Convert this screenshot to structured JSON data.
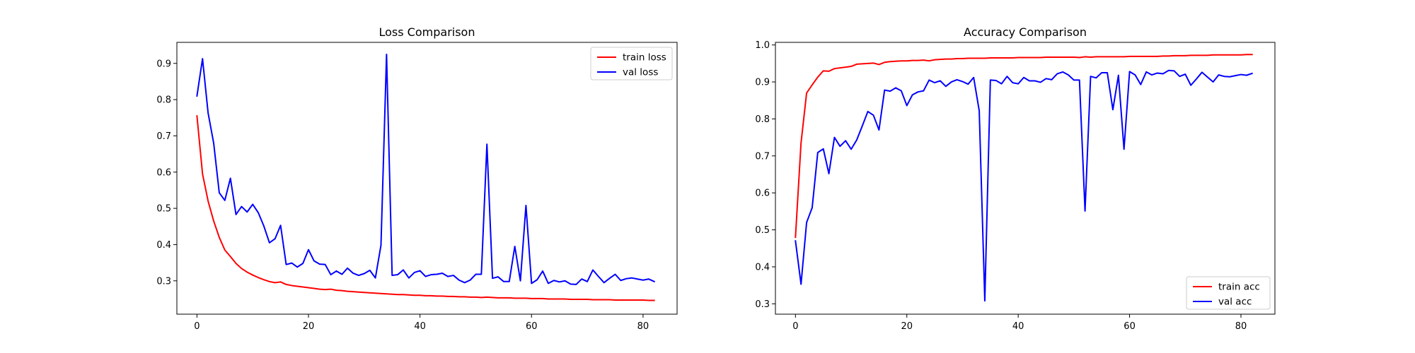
{
  "chart_data": [
    {
      "type": "line",
      "title": "Loss Comparison",
      "xlabel": "",
      "ylabel": "",
      "xlim": [
        -3.6,
        86.1
      ],
      "ylim": [
        0.208,
        0.958
      ],
      "xticks": [
        0,
        20,
        40,
        60,
        80
      ],
      "yticks": [
        0.3,
        0.4,
        0.5,
        0.6,
        0.7,
        0.8,
        0.9
      ],
      "grid": false,
      "legend_position": "top-right",
      "x": [
        0,
        1,
        2,
        3,
        4,
        5,
        6,
        7,
        8,
        9,
        10,
        11,
        12,
        13,
        14,
        15,
        16,
        17,
        18,
        19,
        20,
        21,
        22,
        23,
        24,
        25,
        26,
        27,
        28,
        29,
        30,
        31,
        32,
        33,
        34,
        35,
        36,
        37,
        38,
        39,
        40,
        41,
        42,
        43,
        44,
        45,
        46,
        47,
        48,
        49,
        50,
        51,
        52,
        53,
        54,
        55,
        56,
        57,
        58,
        59,
        60,
        61,
        62,
        63,
        64,
        65,
        66,
        67,
        68,
        69,
        70,
        71,
        72,
        73,
        74,
        75,
        76,
        77,
        78,
        79,
        80,
        81,
        82
      ],
      "series": [
        {
          "name": "train loss",
          "color": "#ff0000",
          "values": [
            0.755,
            0.595,
            0.52,
            0.465,
            0.42,
            0.385,
            0.367,
            0.348,
            0.334,
            0.324,
            0.316,
            0.309,
            0.303,
            0.298,
            0.295,
            0.297,
            0.29,
            0.287,
            0.285,
            0.283,
            0.281,
            0.279,
            0.277,
            0.276,
            0.277,
            0.274,
            0.273,
            0.271,
            0.27,
            0.269,
            0.268,
            0.267,
            0.266,
            0.265,
            0.264,
            0.263,
            0.262,
            0.262,
            0.261,
            0.26,
            0.26,
            0.259,
            0.259,
            0.258,
            0.258,
            0.257,
            0.257,
            0.256,
            0.256,
            0.255,
            0.255,
            0.254,
            0.255,
            0.254,
            0.253,
            0.253,
            0.253,
            0.252,
            0.252,
            0.252,
            0.251,
            0.251,
            0.251,
            0.25,
            0.25,
            0.25,
            0.25,
            0.249,
            0.249,
            0.249,
            0.249,
            0.248,
            0.248,
            0.248,
            0.248,
            0.247,
            0.247,
            0.247,
            0.247,
            0.247,
            0.247,
            0.246,
            0.246
          ]
        },
        {
          "name": "val loss",
          "color": "#0000ff",
          "values": [
            0.81,
            0.913,
            0.763,
            0.68,
            0.543,
            0.522,
            0.583,
            0.483,
            0.505,
            0.49,
            0.511,
            0.488,
            0.451,
            0.405,
            0.416,
            0.453,
            0.345,
            0.349,
            0.338,
            0.348,
            0.386,
            0.355,
            0.346,
            0.345,
            0.317,
            0.327,
            0.318,
            0.335,
            0.321,
            0.315,
            0.32,
            0.329,
            0.308,
            0.398,
            0.925,
            0.315,
            0.317,
            0.33,
            0.308,
            0.323,
            0.328,
            0.312,
            0.317,
            0.318,
            0.321,
            0.312,
            0.315,
            0.302,
            0.295,
            0.302,
            0.318,
            0.318,
            0.677,
            0.307,
            0.311,
            0.298,
            0.298,
            0.395,
            0.3,
            0.508,
            0.293,
            0.303,
            0.327,
            0.293,
            0.301,
            0.297,
            0.3,
            0.291,
            0.29,
            0.305,
            0.298,
            0.33,
            0.312,
            0.295,
            0.307,
            0.318,
            0.301,
            0.306,
            0.308,
            0.305,
            0.302,
            0.305,
            0.298
          ]
        }
      ]
    },
    {
      "type": "line",
      "title": "Accuracy Comparison",
      "xlabel": "",
      "ylabel": "",
      "xlim": [
        -3.6,
        86.1
      ],
      "ylim": [
        0.272,
        1.007
      ],
      "xticks": [
        0,
        20,
        40,
        60,
        80
      ],
      "yticks": [
        0.3,
        0.4,
        0.5,
        0.6,
        0.7,
        0.8,
        0.9,
        1.0
      ],
      "grid": false,
      "legend_position": "bottom-right",
      "x": [
        0,
        1,
        2,
        3,
        4,
        5,
        6,
        7,
        8,
        9,
        10,
        11,
        12,
        13,
        14,
        15,
        16,
        17,
        18,
        19,
        20,
        21,
        22,
        23,
        24,
        25,
        26,
        27,
        28,
        29,
        30,
        31,
        32,
        33,
        34,
        35,
        36,
        37,
        38,
        39,
        40,
        41,
        42,
        43,
        44,
        45,
        46,
        47,
        48,
        49,
        50,
        51,
        52,
        53,
        54,
        55,
        56,
        57,
        58,
        59,
        60,
        61,
        62,
        63,
        64,
        65,
        66,
        67,
        68,
        69,
        70,
        71,
        72,
        73,
        74,
        75,
        76,
        77,
        78,
        79,
        80,
        81,
        82
      ],
      "series": [
        {
          "name": "train acc",
          "color": "#ff0000",
          "values": [
            0.48,
            0.735,
            0.87,
            0.892,
            0.913,
            0.93,
            0.929,
            0.936,
            0.938,
            0.94,
            0.942,
            0.948,
            0.949,
            0.95,
            0.951,
            0.947,
            0.953,
            0.955,
            0.956,
            0.957,
            0.957,
            0.958,
            0.958,
            0.959,
            0.957,
            0.96,
            0.961,
            0.962,
            0.962,
            0.963,
            0.963,
            0.964,
            0.964,
            0.964,
            0.964,
            0.965,
            0.965,
            0.965,
            0.965,
            0.965,
            0.966,
            0.966,
            0.966,
            0.966,
            0.966,
            0.967,
            0.967,
            0.967,
            0.967,
            0.967,
            0.967,
            0.966,
            0.968,
            0.967,
            0.968,
            0.968,
            0.968,
            0.968,
            0.968,
            0.968,
            0.969,
            0.969,
            0.969,
            0.969,
            0.969,
            0.969,
            0.97,
            0.97,
            0.971,
            0.971,
            0.971,
            0.972,
            0.972,
            0.972,
            0.972,
            0.973,
            0.973,
            0.973,
            0.973,
            0.973,
            0.973,
            0.974,
            0.974
          ]
        },
        {
          "name": "val acc",
          "color": "#0000ff",
          "values": [
            0.47,
            0.353,
            0.52,
            0.56,
            0.709,
            0.719,
            0.652,
            0.75,
            0.726,
            0.741,
            0.718,
            0.743,
            0.781,
            0.82,
            0.81,
            0.77,
            0.878,
            0.875,
            0.884,
            0.876,
            0.836,
            0.865,
            0.873,
            0.876,
            0.905,
            0.898,
            0.903,
            0.888,
            0.9,
            0.906,
            0.901,
            0.894,
            0.912,
            0.822,
            0.308,
            0.905,
            0.904,
            0.895,
            0.915,
            0.898,
            0.895,
            0.912,
            0.903,
            0.903,
            0.899,
            0.909,
            0.906,
            0.922,
            0.927,
            0.919,
            0.905,
            0.905,
            0.551,
            0.915,
            0.911,
            0.925,
            0.925,
            0.825,
            0.918,
            0.718,
            0.928,
            0.919,
            0.893,
            0.927,
            0.919,
            0.924,
            0.922,
            0.931,
            0.93,
            0.915,
            0.921,
            0.891,
            0.908,
            0.926,
            0.913,
            0.9,
            0.919,
            0.915,
            0.914,
            0.917,
            0.92,
            0.918,
            0.923
          ]
        }
      ]
    }
  ]
}
